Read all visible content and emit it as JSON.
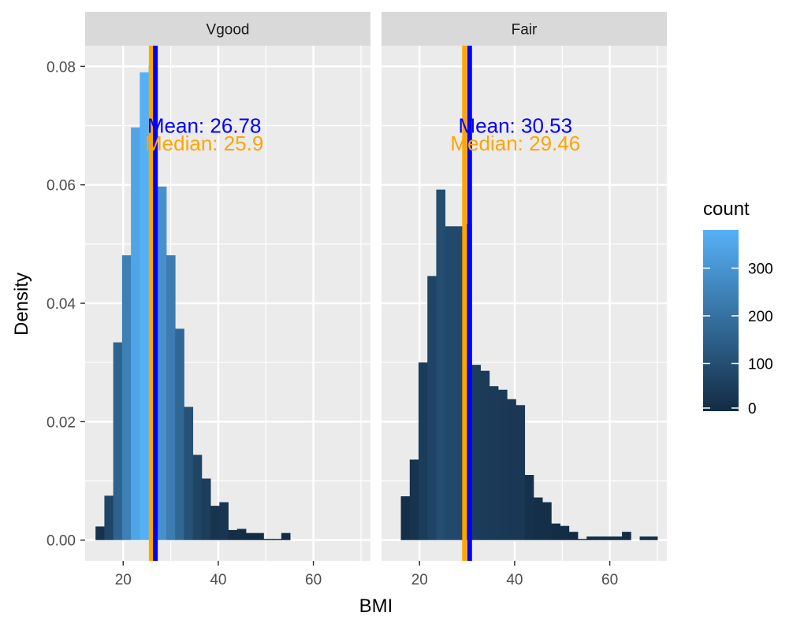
{
  "chart_data": {
    "type": "bar",
    "xlabel": "BMI",
    "ylabel": "Density",
    "xlim": [
      12,
      72
    ],
    "ylim": [
      -0.0035,
      0.0835
    ],
    "x_ticks": [
      20,
      40,
      60
    ],
    "x_tick_labels": [
      "20",
      "40",
      "60"
    ],
    "y_ticks": [
      0,
      0.02,
      0.04,
      0.06,
      0.08
    ],
    "y_tick_labels": [
      "0.00",
      "0.02",
      "0.04",
      "0.06",
      "0.08"
    ],
    "bin_width": 1.86,
    "grid": true,
    "legend": {
      "title": "count",
      "placement": "right",
      "min": 0,
      "max": 380,
      "ticks": [
        0,
        100,
        200,
        300
      ],
      "tick_labels": [
        "0",
        "100",
        "200",
        "300"
      ],
      "color_low": "#132B43",
      "color_high": "#56B1F7"
    },
    "colors": {
      "mean_line": "#0000FF",
      "median_line": "#FFA500",
      "panel_background": "#EBEBEB",
      "strip_background": "#D9D9D9",
      "grid": "#FFFFFF"
    },
    "panels": [
      {
        "name": "Vgood",
        "bins": [
          {
            "x": 15.12,
            "density": 0.0023,
            "count": 21
          },
          {
            "x": 16.98,
            "density": 0.0075,
            "count": 75
          },
          {
            "x": 18.84,
            "density": 0.0334,
            "count": 160
          },
          {
            "x": 20.7,
            "density": 0.0481,
            "count": 240
          },
          {
            "x": 22.56,
            "density": 0.0697,
            "count": 345
          },
          {
            "x": 24.42,
            "density": 0.079,
            "count": 378
          },
          {
            "x": 26.28,
            "density": 0.0802,
            "count": 380
          },
          {
            "x": 28.14,
            "density": 0.0597,
            "count": 290
          },
          {
            "x": 30.0,
            "density": 0.0481,
            "count": 230
          },
          {
            "x": 31.86,
            "density": 0.0357,
            "count": 170
          },
          {
            "x": 33.72,
            "density": 0.0225,
            "count": 110
          },
          {
            "x": 35.58,
            "density": 0.0144,
            "count": 70
          },
          {
            "x": 37.44,
            "density": 0.0104,
            "count": 50
          },
          {
            "x": 39.3,
            "density": 0.0058,
            "count": 28
          },
          {
            "x": 41.16,
            "density": 0.0064,
            "count": 31
          },
          {
            "x": 43.02,
            "density": 0.0017,
            "count": 8
          },
          {
            "x": 44.88,
            "density": 0.0019,
            "count": 9
          },
          {
            "x": 46.74,
            "density": 0.0012,
            "count": 6
          },
          {
            "x": 48.6,
            "density": 0.0012,
            "count": 6
          },
          {
            "x": 50.46,
            "density": 0.0002,
            "count": 1
          },
          {
            "x": 52.32,
            "density": 0.0002,
            "count": 1
          },
          {
            "x": 54.18,
            "density": 0.0012,
            "count": 6
          }
        ],
        "mean": 26.78,
        "median": 25.9,
        "mean_label": "Mean: 26.78",
        "median_label": "Median: 25.9"
      },
      {
        "name": "Fair",
        "bins": [
          {
            "x": 17.0,
            "density": 0.0074,
            "count": 12
          },
          {
            "x": 18.86,
            "density": 0.0136,
            "count": 22
          },
          {
            "x": 20.72,
            "density": 0.03,
            "count": 48
          },
          {
            "x": 22.58,
            "density": 0.0446,
            "count": 72
          },
          {
            "x": 24.44,
            "density": 0.0592,
            "count": 95
          },
          {
            "x": 26.3,
            "density": 0.053,
            "count": 85
          },
          {
            "x": 28.16,
            "density": 0.053,
            "count": 85
          },
          {
            "x": 30.02,
            "density": 0.0534,
            "count": 86
          },
          {
            "x": 31.88,
            "density": 0.0296,
            "count": 48
          },
          {
            "x": 33.74,
            "density": 0.0286,
            "count": 46
          },
          {
            "x": 35.6,
            "density": 0.026,
            "count": 42
          },
          {
            "x": 37.46,
            "density": 0.0254,
            "count": 41
          },
          {
            "x": 39.32,
            "density": 0.0238,
            "count": 38
          },
          {
            "x": 41.18,
            "density": 0.0228,
            "count": 37
          },
          {
            "x": 43.04,
            "density": 0.011,
            "count": 18
          },
          {
            "x": 44.9,
            "density": 0.0072,
            "count": 12
          },
          {
            "x": 46.76,
            "density": 0.0064,
            "count": 10
          },
          {
            "x": 48.62,
            "density": 0.0028,
            "count": 5
          },
          {
            "x": 50.48,
            "density": 0.0024,
            "count": 4
          },
          {
            "x": 52.34,
            "density": 0.0014,
            "count": 2
          },
          {
            "x": 54.2,
            "density": 0.0002,
            "count": 0
          },
          {
            "x": 56.06,
            "density": 0.0006,
            "count": 1
          },
          {
            "x": 57.92,
            "density": 0.0006,
            "count": 1
          },
          {
            "x": 59.78,
            "density": 0.0006,
            "count": 1
          },
          {
            "x": 61.64,
            "density": 0.0006,
            "count": 1
          },
          {
            "x": 63.5,
            "density": 0.0014,
            "count": 2
          },
          {
            "x": 65.36,
            "density": 0.0,
            "count": 0
          },
          {
            "x": 67.22,
            "density": 0.0006,
            "count": 1
          },
          {
            "x": 69.08,
            "density": 0.0006,
            "count": 1
          }
        ],
        "mean": 30.53,
        "median": 29.46,
        "mean_label": "Mean: 30.53",
        "median_label": "Median: 29.46"
      }
    ]
  }
}
